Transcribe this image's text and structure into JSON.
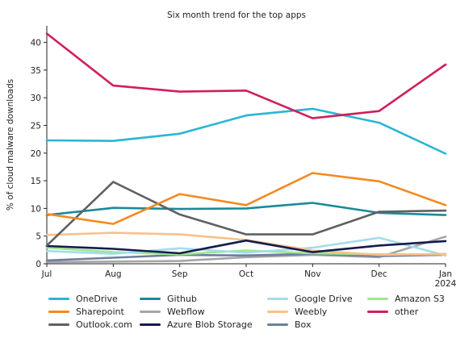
{
  "chart_data": {
    "type": "line",
    "title": "Six month trend for the top apps",
    "xlabel": "",
    "ylabel": "% of cloud malware downloads",
    "categories": [
      "Jul",
      "Aug",
      "Sep",
      "Oct",
      "Nov",
      "Dec",
      "Jan"
    ],
    "year_label": "2024",
    "ylim": [
      0,
      43
    ],
    "yticks": [
      "0",
      "5",
      "10",
      "15",
      "20",
      "25",
      "30",
      "35",
      "40"
    ],
    "grid": false,
    "legend_position": "bottom",
    "series": [
      {
        "name": "OneDrive",
        "color": "#2ab5d4",
        "values": [
          22.3,
          22.2,
          23.5,
          26.8,
          28.0,
          25.5,
          19.9
        ]
      },
      {
        "name": "Sharepoint",
        "color": "#f5891f",
        "values": [
          9.0,
          7.2,
          12.6,
          10.6,
          16.4,
          14.9,
          10.6
        ]
      },
      {
        "name": "Outlook.com",
        "color": "#5f6062",
        "values": [
          3.3,
          14.8,
          8.9,
          5.3,
          5.3,
          9.4,
          9.6
        ]
      },
      {
        "name": "Github",
        "color": "#1a8a98",
        "values": [
          8.8,
          10.1,
          9.9,
          10.0,
          11.0,
          9.2,
          8.8
        ]
      },
      {
        "name": "Webflow",
        "color": "#a5a5a5",
        "values": [
          0.3,
          0.4,
          0.5,
          1.2,
          1.6,
          1.2,
          4.9
        ]
      },
      {
        "name": "Azure Blob Storage",
        "color": "#141b4d",
        "values": [
          3.2,
          2.7,
          1.9,
          4.2,
          2.1,
          3.3,
          4.1
        ]
      },
      {
        "name": "Google Drive",
        "color": "#a3dcec",
        "values": [
          2.3,
          1.8,
          2.8,
          2.0,
          2.9,
          4.7,
          1.5
        ]
      },
      {
        "name": "Weebly",
        "color": "#f9c08a",
        "values": [
          5.2,
          5.6,
          5.3,
          4.3,
          2.4,
          1.6,
          1.8
        ]
      },
      {
        "name": "Box",
        "color": "#6d7da0",
        "values": [
          0.6,
          1.1,
          1.6,
          1.5,
          1.8,
          1.4,
          1.6
        ]
      },
      {
        "name": "Amazon S3",
        "color": "#9de68f",
        "values": [
          2.9,
          2.1,
          1.7,
          2.4,
          1.9,
          1.7,
          1.7
        ]
      },
      {
        "name": "other",
        "color": "#d01e5e",
        "values": [
          41.6,
          32.2,
          31.1,
          31.3,
          26.3,
          27.6,
          36.0
        ]
      }
    ]
  },
  "legend_order": [
    "OneDrive",
    "Github",
    "Google Drive",
    "Amazon S3",
    "Sharepoint",
    "Webflow",
    "Weebly",
    "other",
    "Outlook.com",
    "Azure Blob Storage",
    "Box"
  ]
}
